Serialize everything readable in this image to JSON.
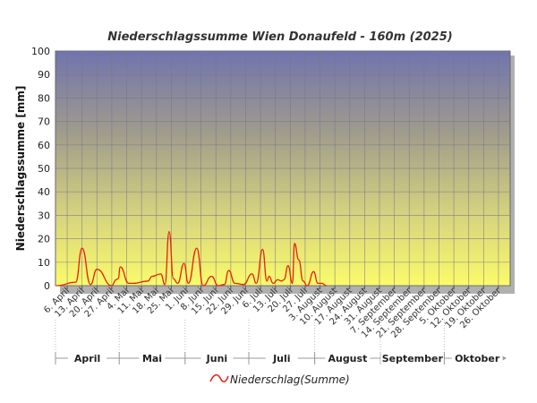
{
  "chart_data": {
    "type": "area",
    "title": "Niederschlagssumme Wien Donaufeld - 160m (2025)",
    "ylabel": "Niederschlagssumme [mm]",
    "xlabel": "",
    "ylim": [
      0,
      100
    ],
    "yticks": [
      0,
      10,
      20,
      30,
      40,
      50,
      60,
      70,
      80,
      90,
      100
    ],
    "grid": true,
    "legend_placement": "bottom",
    "x_start": "2025-04-01",
    "x_end": "2025-10-31",
    "x_tick_labels": [
      "6. April",
      "13. April",
      "20. April",
      "27. April",
      "4. Mai",
      "11. Mai",
      "18. Mai",
      "25. Mai",
      "1. Juni",
      "8. Juni",
      "15. Juni",
      "22. Juni",
      "29. Juni",
      "6. Juli",
      "13. Juli",
      "20. Juli",
      "27. Juli",
      "3. August",
      "10. August",
      "17. August",
      "24. August",
      "31. August",
      "7. September",
      "14. September",
      "21. September",
      "28. September",
      "5. Oktober",
      "12. Oktober",
      "19. Oktober",
      "26. Oktober"
    ],
    "months": [
      "April",
      "Mai",
      "Juni",
      "Juli",
      "August",
      "September",
      "Oktober"
    ],
    "series": [
      {
        "name": "Niederschlag(Summe)",
        "color": "#e8200f",
        "points": [
          {
            "x": "2025-04-01",
            "y": 0
          },
          {
            "x": "2025-04-10",
            "y": 1.5
          },
          {
            "x": "2025-04-13",
            "y": 16
          },
          {
            "x": "2025-04-17",
            "y": 0.5
          },
          {
            "x": "2025-04-20",
            "y": 7
          },
          {
            "x": "2025-04-27",
            "y": 0
          },
          {
            "x": "2025-04-29",
            "y": 2.5
          },
          {
            "x": "2025-04-30",
            "y": 3
          },
          {
            "x": "2025-05-01",
            "y": 8
          },
          {
            "x": "2025-05-05",
            "y": 1
          },
          {
            "x": "2025-05-07",
            "y": 1
          },
          {
            "x": "2025-05-14",
            "y": 2
          },
          {
            "x": "2025-05-16",
            "y": 4
          },
          {
            "x": "2025-05-20",
            "y": 5
          },
          {
            "x": "2025-05-22",
            "y": 0.5
          },
          {
            "x": "2025-05-24",
            "y": 23
          },
          {
            "x": "2025-05-26",
            "y": 3
          },
          {
            "x": "2025-05-28",
            "y": 1
          },
          {
            "x": "2025-05-31",
            "y": 9.5
          },
          {
            "x": "2025-06-02",
            "y": 1
          },
          {
            "x": "2025-06-06",
            "y": 16
          },
          {
            "x": "2025-06-09",
            "y": 0
          },
          {
            "x": "2025-06-13",
            "y": 4
          },
          {
            "x": "2025-06-16",
            "y": 0
          },
          {
            "x": "2025-06-19",
            "y": 0.5
          },
          {
            "x": "2025-06-21",
            "y": 6.5
          },
          {
            "x": "2025-06-24",
            "y": 1
          },
          {
            "x": "2025-06-28",
            "y": 0.5
          },
          {
            "x": "2025-07-02",
            "y": 5
          },
          {
            "x": "2025-07-04",
            "y": 1
          },
          {
            "x": "2025-07-07",
            "y": 15.5
          },
          {
            "x": "2025-07-09",
            "y": 2
          },
          {
            "x": "2025-07-10",
            "y": 4
          },
          {
            "x": "2025-07-12",
            "y": 1
          },
          {
            "x": "2025-07-14",
            "y": 2.5
          },
          {
            "x": "2025-07-16",
            "y": 2
          },
          {
            "x": "2025-07-17",
            "y": 2.5
          },
          {
            "x": "2025-07-19",
            "y": 8.5
          },
          {
            "x": "2025-07-21",
            "y": 1
          },
          {
            "x": "2025-07-22",
            "y": 18
          },
          {
            "x": "2025-07-24",
            "y": 11
          },
          {
            "x": "2025-07-26",
            "y": 2
          },
          {
            "x": "2025-07-28",
            "y": 0
          },
          {
            "x": "2025-07-31",
            "y": 6
          },
          {
            "x": "2025-08-02",
            "y": 1
          },
          {
            "x": "2025-08-04",
            "y": 1
          },
          {
            "x": "2025-08-06",
            "y": 0
          }
        ]
      }
    ]
  },
  "legend": {
    "label": "Niederschlag(Summe)"
  }
}
